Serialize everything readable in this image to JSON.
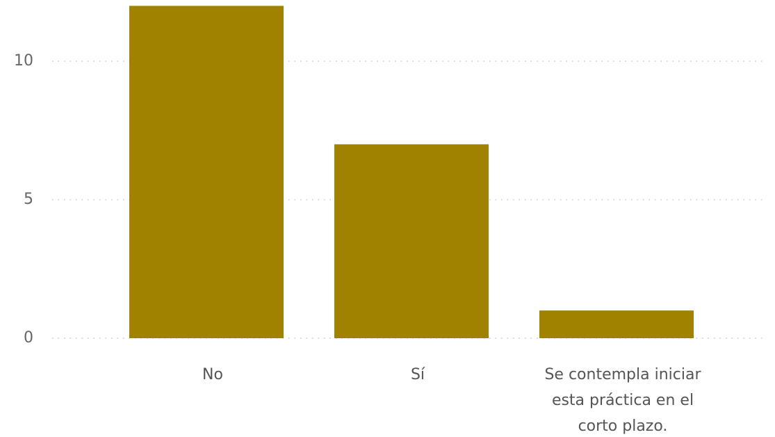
{
  "chart_data": {
    "type": "bar",
    "categories": [
      [
        "No"
      ],
      [
        "Sí"
      ],
      [
        "Se contempla iniciar",
        "esta práctica en el",
        "corto plazo."
      ]
    ],
    "values": [
      12,
      7,
      1
    ],
    "ylim": [
      0,
      12
    ],
    "yticks": [
      0,
      5,
      10
    ],
    "grid": true,
    "bar_color": "#A08200",
    "title": "",
    "xlabel": "",
    "ylabel": ""
  }
}
